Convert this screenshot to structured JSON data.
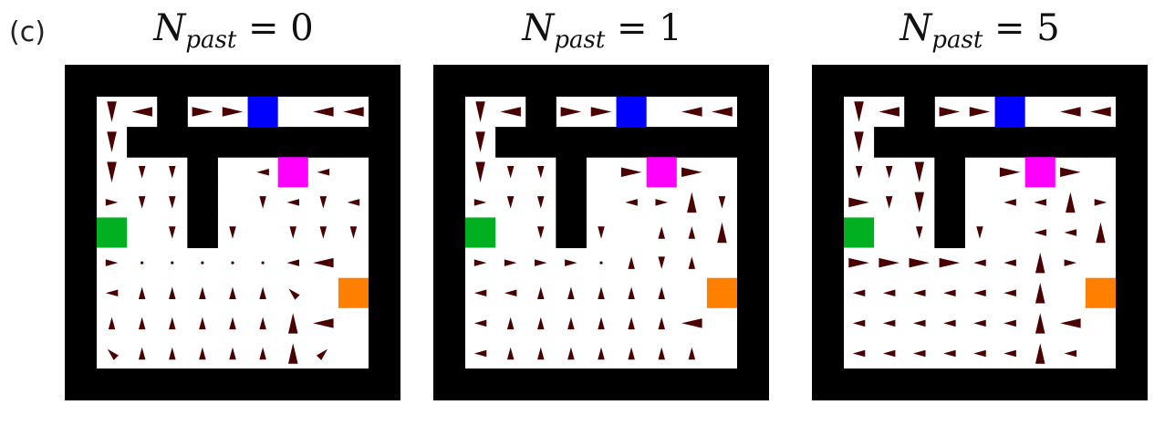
{
  "figure": {
    "panel_label": "(c)",
    "colors": {
      "wall": "#000000",
      "floor": "#ffffff",
      "arrow": "#4a0000",
      "blue_goal": "#0000ff",
      "magenta_goal": "#ff00ff",
      "green_goal": "#00b020",
      "orange_goal": "#ff8000"
    }
  },
  "mazes": [
    {
      "title": {
        "var": "N",
        "sub": "past",
        "eq": "= 0"
      },
      "arrows": [
        "V  W  E E # W W W ",
        "V               ",
        "V v v # w w # v w ",
        "e v v # v w v w ",
        "# v v # v v v v ",
        "e . . . . . w W ",
        "w n n n n n nw #",
        "n n n n n n N W ",
        "nw n n n n n N ne"
      ]
    },
    {
      "title": {
        "var": "N",
        "sub": "past",
        "eq": "= 1"
      },
      "arrows": [
        "V  W  E E # W W W ",
        "V               ",
        "V v v # E E # W W ",
        "e v v # w e N v ",
        "# v v # n n N v ",
        "e e e e . n v n ",
        "w w n n n n n #",
        "w n n n n n n W ",
        "w n n n n n n n "
      ]
    },
    {
      "title": {
        "var": "N",
        "sub": "past",
        "eq": "= 5"
      },
      "arrows": [
        "V  W  E E # W W W ",
        "V               ",
        "v v V # E E # W W ",
        "E v V # w w N e ",
        "# v v # w w N e ",
        "E E E E w w N e ",
        "w w w w w w N #",
        "w w w w w w N W ",
        "w w w w w w N w "
      ]
    }
  ]
}
